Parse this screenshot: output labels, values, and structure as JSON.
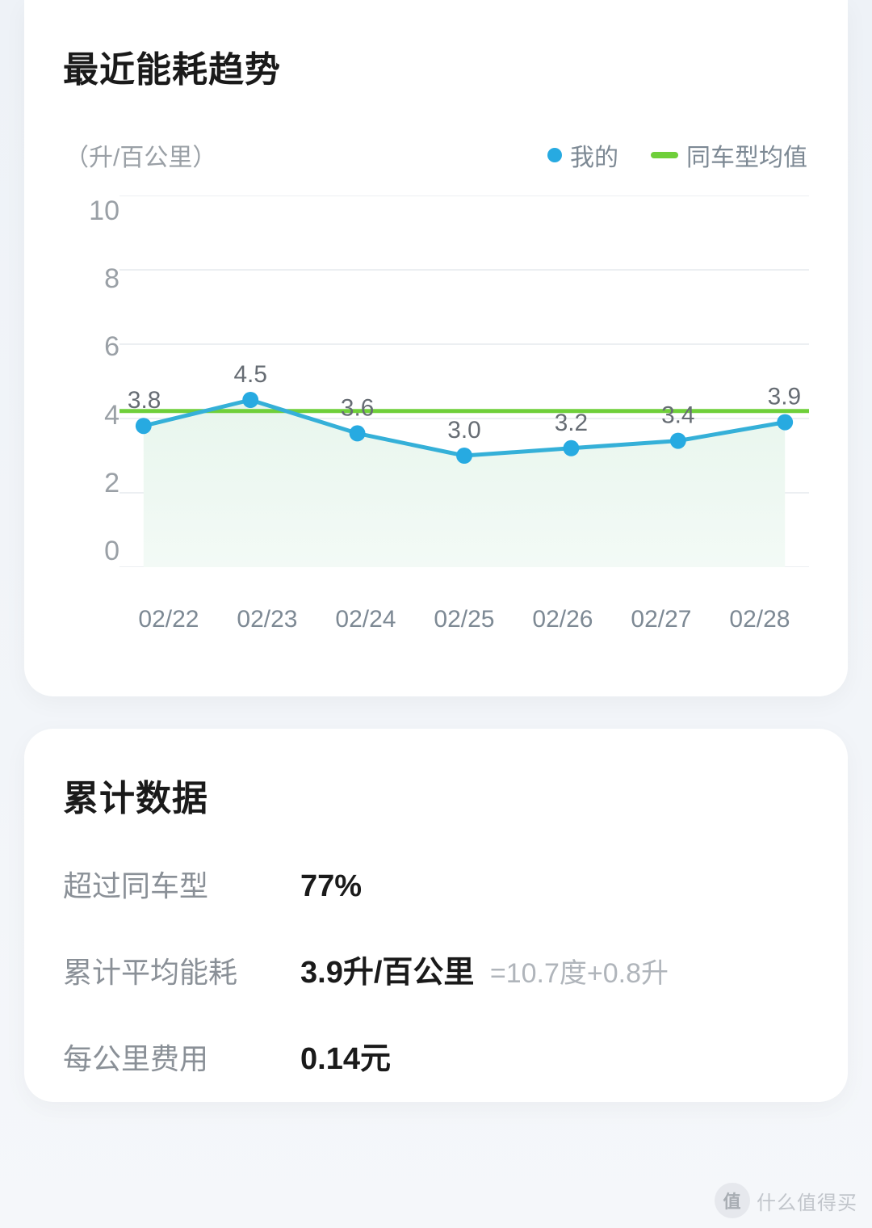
{
  "page_background": "#f3f6fa",
  "card_background": "#ffffff",
  "trend_card": {
    "title": "最近能耗趋势",
    "y_axis_label": "（升/百公里）",
    "legend": {
      "mine": {
        "label": "我的",
        "color": "#27aae1"
      },
      "avg": {
        "label": "同车型均值",
        "color": "#6fcf3a"
      }
    },
    "chart": {
      "type": "line",
      "ylim": [
        0,
        10
      ],
      "ytick_step": 2,
      "yticks": [
        "10",
        "8",
        "6",
        "4",
        "2",
        "0"
      ],
      "avg_reference": 4.2,
      "categories": [
        "02/22",
        "02/23",
        "02/24",
        "02/25",
        "02/26",
        "02/27",
        "02/28"
      ],
      "values": [
        3.8,
        4.5,
        3.6,
        3.0,
        3.2,
        3.4,
        3.9
      ],
      "value_labels": [
        "3.8",
        "4.5",
        "3.6",
        "3.0",
        "3.2",
        "3.4",
        "3.9"
      ],
      "line_color": "#35b0d8",
      "marker_color": "#27aae1",
      "marker_radius": 10,
      "line_width": 5,
      "area_fill_top": "#e8f6ed",
      "area_fill_bottom": "#f3faf6",
      "grid_color": "#eceff2",
      "avg_line_color": "#6fcf3a",
      "avg_line_width": 5,
      "axis_text_color": "#8d949b",
      "value_label_color": "#666c73",
      "value_label_fontsize": 30
    }
  },
  "summary_card": {
    "title": "累计数据",
    "rows": [
      {
        "label": "超过同车型",
        "value": "77%",
        "extra": ""
      },
      {
        "label": "累计平均能耗",
        "value": "3.9升/百公里",
        "extra": "=10.7度+0.8升"
      },
      {
        "label": "每公里费用",
        "value": "0.14元",
        "extra": ""
      }
    ]
  },
  "watermark": {
    "icon_text": "值",
    "text": "什么值得买"
  }
}
